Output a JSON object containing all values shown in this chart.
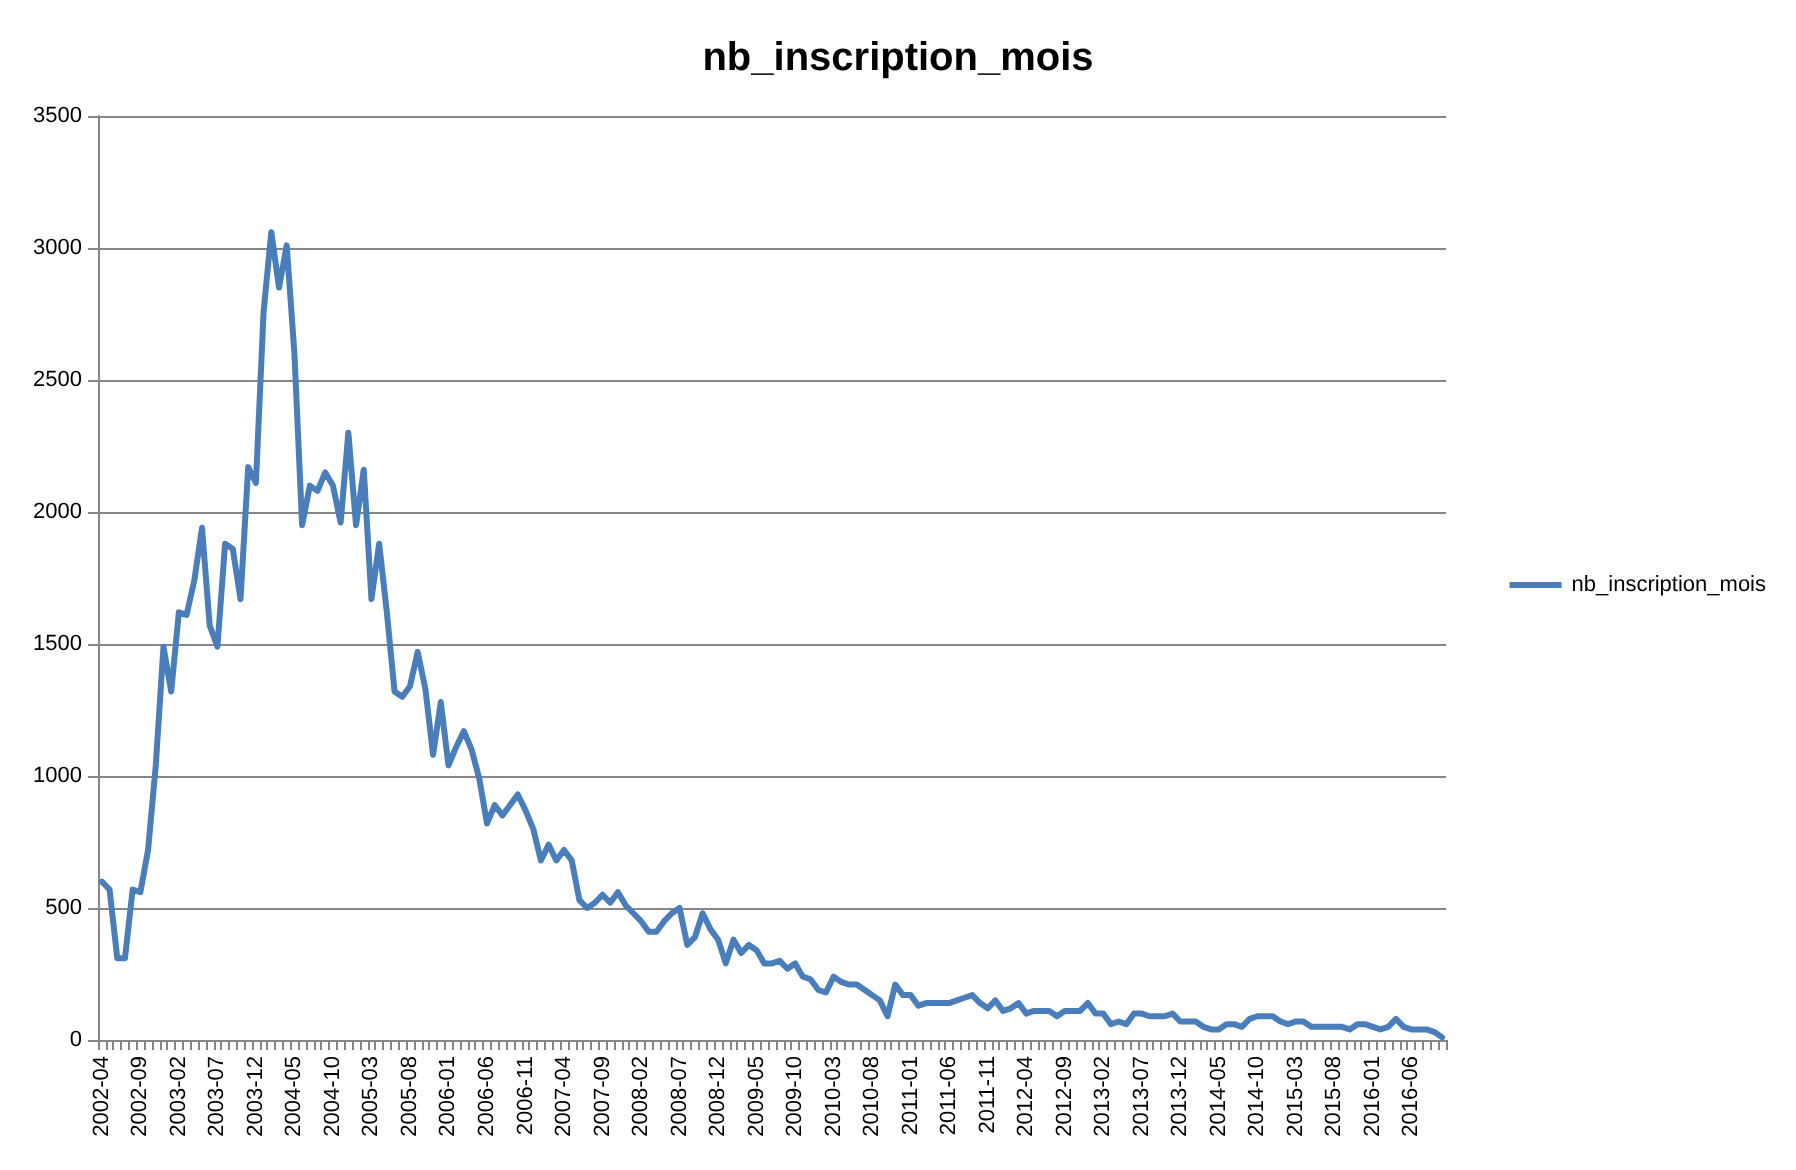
{
  "chart_data": {
    "type": "line",
    "title": "nb_inscription_mois",
    "categories": [
      "2002-04",
      null,
      null,
      null,
      null,
      "2002-09",
      null,
      null,
      null,
      null,
      "2003-02",
      null,
      null,
      null,
      null,
      "2003-07",
      null,
      null,
      null,
      null,
      "2003-12",
      null,
      null,
      null,
      null,
      "2004-05",
      null,
      null,
      null,
      null,
      "2004-10",
      null,
      null,
      null,
      null,
      "2005-03",
      null,
      null,
      null,
      null,
      "2005-08",
      null,
      null,
      null,
      null,
      "2006-01",
      null,
      null,
      null,
      null,
      "2006-06",
      null,
      null,
      null,
      null,
      "2006-11",
      null,
      null,
      null,
      null,
      "2007-04",
      null,
      null,
      null,
      null,
      "2007-09",
      null,
      null,
      null,
      null,
      "2008-02",
      null,
      null,
      null,
      null,
      "2008-07",
      null,
      null,
      null,
      null,
      "2008-12",
      null,
      null,
      null,
      null,
      "2009-05",
      null,
      null,
      null,
      null,
      "2009-10",
      null,
      null,
      null,
      null,
      "2010-03",
      null,
      null,
      null,
      null,
      "2010-08",
      null,
      null,
      null,
      null,
      "2011-01",
      null,
      null,
      null,
      null,
      "2011-06",
      null,
      null,
      null,
      null,
      "2011-11",
      null,
      null,
      null,
      null,
      "2012-04",
      null,
      null,
      null,
      null,
      "2012-09",
      null,
      null,
      null,
      null,
      "2013-02",
      null,
      null,
      null,
      null,
      "2013-07",
      null,
      null,
      null,
      null,
      "2013-12",
      null,
      null,
      null,
      null,
      "2014-05",
      null,
      null,
      null,
      null,
      "2014-10",
      null,
      null,
      null,
      null,
      "2015-03",
      null,
      null,
      null,
      null,
      "2015-08",
      null,
      null,
      null,
      null,
      "2016-01",
      null,
      null,
      null,
      null,
      "2016-06",
      null,
      null,
      null,
      null
    ],
    "series": [
      {
        "name": "nb_inscription_mois",
        "color": "#4a7ebb",
        "values": [
          600,
          570,
          310,
          310,
          570,
          560,
          720,
          1040,
          1490,
          1320,
          1620,
          1610,
          1740,
          1940,
          1570,
          1490,
          1880,
          1860,
          1670,
          2170,
          2110,
          2760,
          3060,
          2850,
          3010,
          2600,
          1950,
          2100,
          2080,
          2150,
          2100,
          1960,
          2300,
          1950,
          2160,
          1670,
          1880,
          1620,
          1320,
          1300,
          1340,
          1470,
          1330,
          1080,
          1280,
          1040,
          1110,
          1170,
          1100,
          990,
          820,
          890,
          850,
          890,
          930,
          870,
          800,
          680,
          740,
          680,
          720,
          680,
          530,
          500,
          520,
          550,
          520,
          560,
          510,
          480,
          450,
          410,
          410,
          450,
          480,
          500,
          360,
          390,
          480,
          420,
          380,
          290,
          380,
          330,
          360,
          340,
          290,
          290,
          300,
          270,
          290,
          240,
          230,
          190,
          180,
          240,
          220,
          210,
          210,
          190,
          170,
          150,
          90,
          210,
          170,
          170,
          130,
          140,
          140,
          140,
          140,
          150,
          160,
          170,
          140,
          120,
          150,
          110,
          120,
          140,
          100,
          110,
          110,
          110,
          90,
          110,
          110,
          110,
          140,
          100,
          100,
          60,
          70,
          60,
          100,
          100,
          90,
          90,
          90,
          100,
          70,
          70,
          70,
          50,
          40,
          40,
          60,
          60,
          50,
          80,
          90,
          90,
          90,
          70,
          60,
          70,
          70,
          50,
          50,
          50,
          50,
          50,
          40,
          60,
          60,
          50,
          40,
          50,
          80,
          50,
          40,
          40,
          40,
          30,
          10
        ]
      }
    ],
    "ylim": [
      0,
      3500
    ],
    "yticks": [
      0,
      500,
      1000,
      1500,
      2000,
      2500,
      3000,
      3500
    ],
    "grid": "y",
    "legend": "right",
    "marker": "none",
    "line_style": "solid"
  }
}
